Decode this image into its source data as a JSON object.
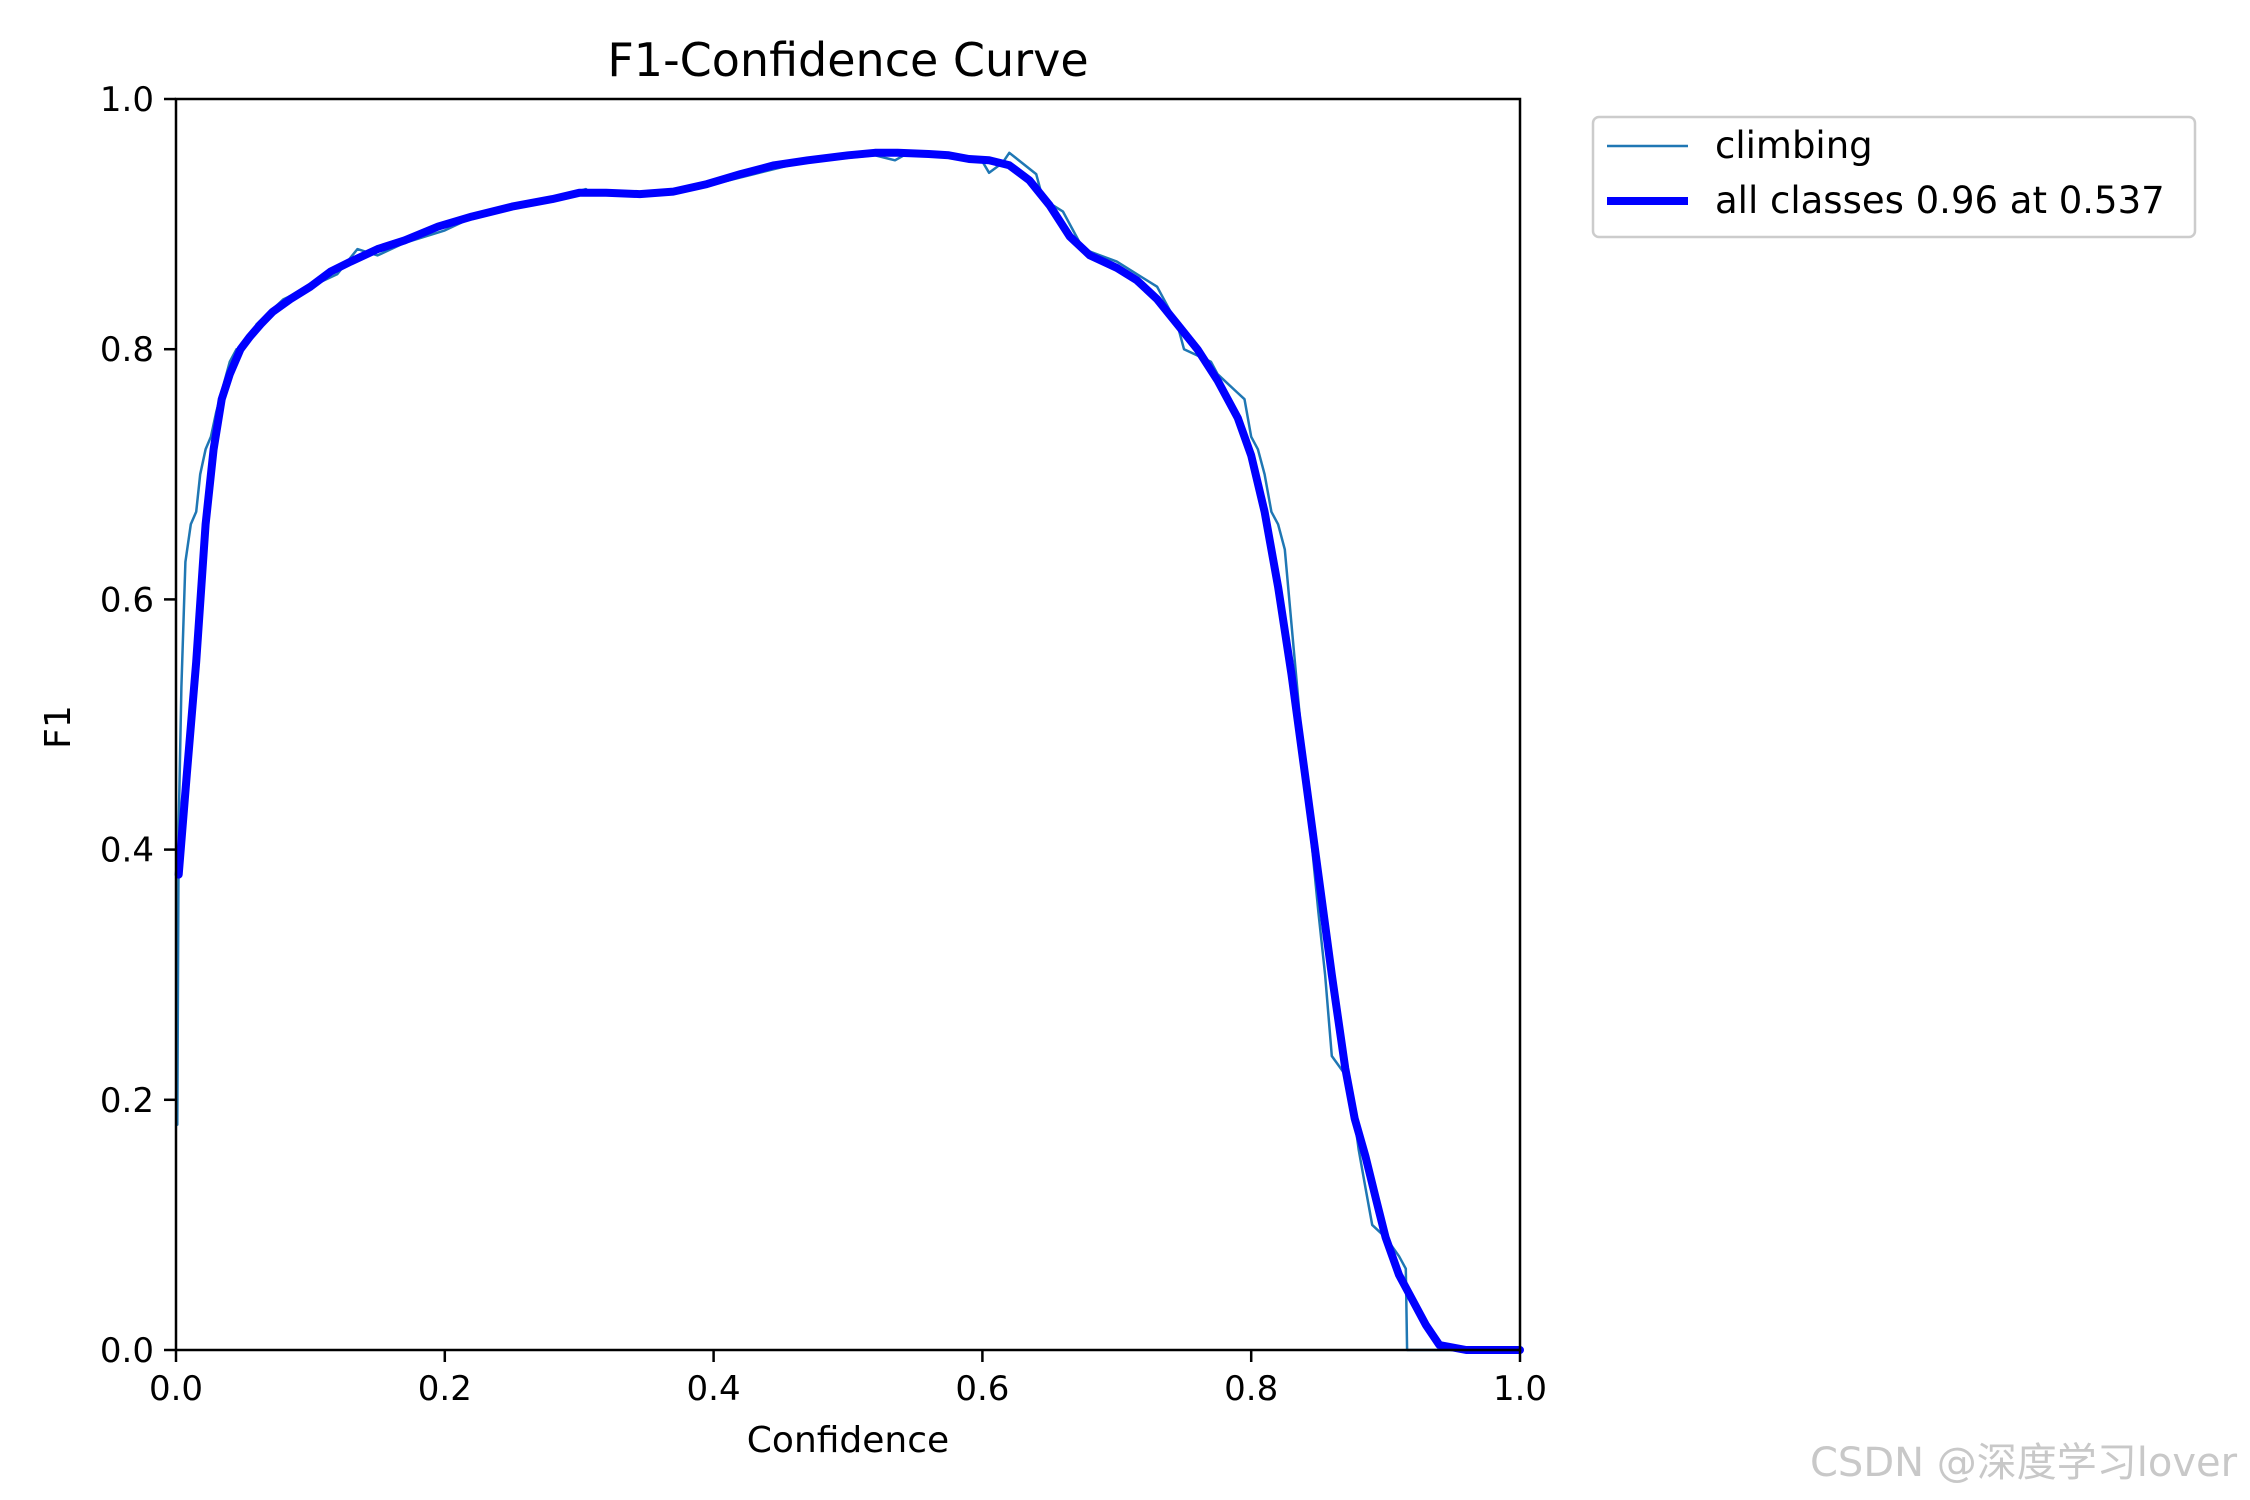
{
  "chart_data": {
    "type": "line",
    "title": "F1-Confidence Curve",
    "xlabel": "Confidence",
    "ylabel": "F1",
    "xlim": [
      0,
      1
    ],
    "ylim": [
      0,
      1
    ],
    "xticks": [
      "0.0",
      "0.2",
      "0.4",
      "0.6",
      "0.8",
      "1.0"
    ],
    "yticks": [
      "0.0",
      "0.2",
      "0.4",
      "0.6",
      "0.8",
      "1.0"
    ],
    "grid": false,
    "legend_position": "outside-top-right",
    "series": [
      {
        "name": "climbing",
        "color": "#1f77b4",
        "x": [
          0.001,
          0.002,
          0.004,
          0.007,
          0.011,
          0.015,
          0.018,
          0.022,
          0.026,
          0.03,
          0.035,
          0.04,
          0.045,
          0.05,
          0.055,
          0.06,
          0.07,
          0.08,
          0.09,
          0.1,
          0.12,
          0.135,
          0.15,
          0.17,
          0.2,
          0.22,
          0.25,
          0.28,
          0.305,
          0.31,
          0.34,
          0.37,
          0.4,
          0.43,
          0.46,
          0.49,
          0.52,
          0.535,
          0.545,
          0.57,
          0.6,
          0.605,
          0.615,
          0.62,
          0.64,
          0.645,
          0.66,
          0.675,
          0.7,
          0.73,
          0.735,
          0.745,
          0.75,
          0.77,
          0.775,
          0.79,
          0.795,
          0.8,
          0.805,
          0.81,
          0.815,
          0.82,
          0.825,
          0.83,
          0.84,
          0.85,
          0.855,
          0.86,
          0.87,
          0.875,
          0.88,
          0.885,
          0.89,
          0.9,
          0.91,
          0.915,
          0.916,
          0.93,
          0.95,
          0.97,
          1.0
        ],
        "y": [
          0.18,
          0.42,
          0.53,
          0.63,
          0.66,
          0.67,
          0.7,
          0.72,
          0.73,
          0.75,
          0.77,
          0.79,
          0.8,
          0.8,
          0.81,
          0.82,
          0.83,
          0.84,
          0.845,
          0.85,
          0.86,
          0.88,
          0.875,
          0.885,
          0.895,
          0.905,
          0.915,
          0.92,
          0.928,
          0.923,
          0.925,
          0.928,
          0.932,
          0.94,
          0.948,
          0.952,
          0.955,
          0.951,
          0.957,
          0.954,
          0.95,
          0.941,
          0.949,
          0.957,
          0.94,
          0.92,
          0.91,
          0.88,
          0.87,
          0.85,
          0.84,
          0.82,
          0.8,
          0.79,
          0.78,
          0.765,
          0.76,
          0.73,
          0.72,
          0.7,
          0.67,
          0.66,
          0.64,
          0.58,
          0.46,
          0.35,
          0.3,
          0.235,
          0.22,
          0.2,
          0.16,
          0.13,
          0.1,
          0.09,
          0.075,
          0.065,
          0.0,
          0.0,
          0.0,
          0.0,
          0.0
        ]
      },
      {
        "name": "all classes 0.96 at 0.537",
        "color": "#0000ff",
        "x": [
          0.002,
          0.008,
          0.015,
          0.022,
          0.028,
          0.034,
          0.04,
          0.048,
          0.055,
          0.063,
          0.072,
          0.085,
          0.1,
          0.115,
          0.13,
          0.15,
          0.17,
          0.195,
          0.22,
          0.25,
          0.28,
          0.3,
          0.32,
          0.345,
          0.37,
          0.395,
          0.42,
          0.445,
          0.47,
          0.5,
          0.52,
          0.537,
          0.56,
          0.575,
          0.59,
          0.605,
          0.62,
          0.635,
          0.65,
          0.665,
          0.68,
          0.7,
          0.715,
          0.73,
          0.745,
          0.76,
          0.775,
          0.79,
          0.8,
          0.81,
          0.82,
          0.83,
          0.84,
          0.85,
          0.86,
          0.87,
          0.877,
          0.885,
          0.893,
          0.9,
          0.91,
          0.92,
          0.93,
          0.94,
          0.96,
          0.98,
          1.0
        ],
        "y": [
          0.38,
          0.46,
          0.55,
          0.66,
          0.72,
          0.76,
          0.78,
          0.8,
          0.81,
          0.82,
          0.83,
          0.84,
          0.85,
          0.862,
          0.87,
          0.88,
          0.887,
          0.898,
          0.906,
          0.914,
          0.92,
          0.925,
          0.925,
          0.924,
          0.926,
          0.932,
          0.94,
          0.947,
          0.951,
          0.955,
          0.957,
          0.957,
          0.956,
          0.955,
          0.952,
          0.951,
          0.947,
          0.935,
          0.915,
          0.89,
          0.875,
          0.865,
          0.855,
          0.84,
          0.82,
          0.8,
          0.775,
          0.745,
          0.715,
          0.67,
          0.61,
          0.54,
          0.46,
          0.38,
          0.3,
          0.225,
          0.185,
          0.155,
          0.12,
          0.09,
          0.06,
          0.04,
          0.02,
          0.004,
          0.0,
          0.0,
          0.0
        ]
      }
    ]
  },
  "watermark": "CSDN @深度学习lover"
}
